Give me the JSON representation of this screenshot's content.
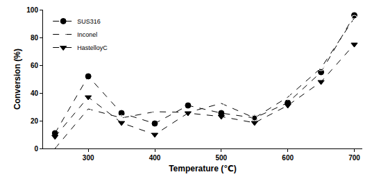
{
  "chart_data": {
    "type": "line",
    "x_label": "Temperature (℃)",
    "y_label": "Conversion (%)",
    "x": [
      250,
      300,
      350,
      400,
      450,
      500,
      550,
      600,
      650,
      700
    ],
    "series": [
      {
        "name": "SUS316",
        "color": "#000000",
        "marker": "circle",
        "line_style": "dash",
        "values": [
          11,
          52,
          25.5,
          18,
          31,
          25.5,
          22,
          33,
          55,
          96
        ]
      },
      {
        "name": "Inconel",
        "color": "#000000",
        "marker": "circle-open",
        "line_style": "dash",
        "values": [
          0,
          28.5,
          22,
          26.5,
          26,
          32.5,
          22,
          37,
          58,
          94
        ]
      },
      {
        "name": "HastelloyC",
        "color": "#000000",
        "marker": "triangle-down",
        "line_style": "dash",
        "values": [
          8.5,
          37,
          18.5,
          10,
          25.5,
          23,
          18.5,
          31,
          48,
          75
        ]
      }
    ],
    "xlim": [
      232,
      712
    ],
    "xticks": [
      300,
      400,
      500,
      600,
      700
    ],
    "ylim": [
      0,
      100
    ],
    "yticks": [
      0,
      20,
      40,
      60,
      80,
      100
    ],
    "grid": false,
    "legend": "top-left"
  }
}
